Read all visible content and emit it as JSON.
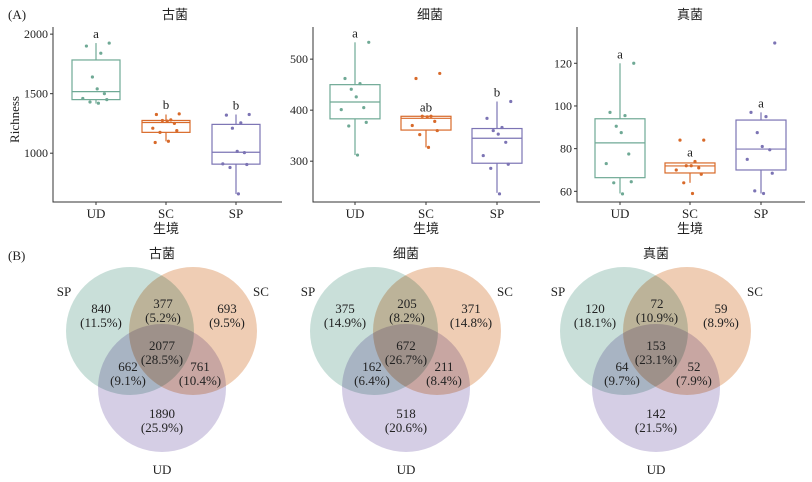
{
  "panel_labels": {
    "a": "(A)",
    "b": "(B)"
  },
  "colors": {
    "UD": "#6fa995",
    "SC": "#d86a2a",
    "SP": "#7c74b4",
    "venn_SP": "#c6ded7",
    "venn_SC": "#efcbb0",
    "venn_UD": "#d3cce4"
  },
  "chart_data": [
    {
      "type": "boxplot",
      "title": "古菌",
      "xlabel": "生境",
      "ylabel": "Richness",
      "categories": [
        "UD",
        "SC",
        "SP"
      ],
      "yticks": [
        1000,
        1500,
        2000
      ],
      "ylim": [
        590,
        2060
      ],
      "boxes": [
        {
          "group": "UD",
          "q1": 1450,
          "median": 1517,
          "q3": 1783,
          "whisker_low": 1417,
          "whisker_high": 1925,
          "letter": "a",
          "points": [
            1925,
            1900,
            1840,
            1640,
            1540,
            1500,
            1460,
            1450,
            1430,
            1420
          ]
        },
        {
          "group": "SC",
          "q1": 1175,
          "median": 1258,
          "q3": 1275,
          "whisker_low": 1100,
          "whisker_high": 1325,
          "letter": "b",
          "points": [
            1330,
            1325,
            1280,
            1275,
            1270,
            1250,
            1210,
            1190,
            1175,
            1100,
            1090
          ]
        },
        {
          "group": "SP",
          "q1": 908,
          "median": 1008,
          "q3": 1242,
          "whisker_low": 658,
          "whisker_high": 1325,
          "letter": "b",
          "points": [
            1325,
            1320,
            1255,
            1210,
            1015,
            1005,
            910,
            905,
            880,
            658
          ]
        }
      ]
    },
    {
      "type": "boxplot",
      "title": "细菌",
      "xlabel": "生境",
      "ylabel": "",
      "categories": [
        "UD",
        "SC",
        "SP"
      ],
      "yticks": [
        300,
        400,
        500
      ],
      "ylim": [
        220,
        563
      ],
      "boxes": [
        {
          "group": "UD",
          "q1": 383,
          "median": 416,
          "q3": 450,
          "whisker_low": 312,
          "whisker_high": 533,
          "letter": "a",
          "points": [
            533,
            462,
            452,
            441,
            426,
            405,
            401,
            376,
            369,
            312
          ]
        },
        {
          "group": "SC",
          "q1": 361,
          "median": 384,
          "q3": 388,
          "whisker_low": 327,
          "whisker_high": 388,
          "letter": "ab",
          "points": [
            472,
            462,
            388,
            388,
            387,
            378,
            370,
            360,
            352,
            327
          ]
        },
        {
          "group": "SP",
          "q1": 296,
          "median": 345,
          "q3": 364,
          "whisker_low": 238,
          "whisker_high": 417,
          "letter": "b",
          "points": [
            417,
            384,
            366,
            360,
            353,
            337,
            311,
            294,
            286,
            236
          ]
        }
      ]
    },
    {
      "type": "boxplot",
      "title": "真菌",
      "xlabel": "生境",
      "ylabel": "",
      "categories": [
        "UD",
        "SC",
        "SP"
      ],
      "yticks": [
        60,
        80,
        100,
        120
      ],
      "ylim": [
        55,
        137
      ],
      "boxes": [
        {
          "group": "UD",
          "q1": 66.4,
          "median": 82.7,
          "q3": 94,
          "whisker_low": 59,
          "whisker_high": 120,
          "letter": "a",
          "points": [
            120,
            97,
            95.5,
            90.5,
            87.5,
            77.5,
            73,
            64.5,
            64,
            58.8
          ]
        },
        {
          "group": "SC",
          "q1": 68.6,
          "median": 71.9,
          "q3": 73.3,
          "whisker_low": 64,
          "whisker_high": 73.5,
          "letter": "a",
          "points": [
            84,
            84,
            74,
            72,
            72,
            71,
            70,
            68,
            64,
            59
          ]
        },
        {
          "group": "SP",
          "q1": 70,
          "median": 79.8,
          "q3": 93.4,
          "whisker_low": 59,
          "whisker_high": 97,
          "letter": "a",
          "points": [
            129.5,
            97,
            95,
            87.5,
            81,
            79.5,
            75,
            68.5,
            60.2,
            59
          ]
        }
      ]
    },
    {
      "type": "venn",
      "title": "古菌",
      "sets": [
        "SP",
        "SC",
        "UD"
      ],
      "regions": {
        "SP_only": {
          "count": "840",
          "pct": "(11.5%)"
        },
        "SC_only": {
          "count": "693",
          "pct": "(9.5%)"
        },
        "UD_only": {
          "count": "1890",
          "pct": "(25.9%)"
        },
        "SP_SC": {
          "count": "377",
          "pct": "(5.2%)"
        },
        "SP_UD": {
          "count": "662",
          "pct": "(9.1%)"
        },
        "SC_UD": {
          "count": "761",
          "pct": "(10.4%)"
        },
        "all": {
          "count": "2077",
          "pct": "(28.5%)"
        }
      }
    },
    {
      "type": "venn",
      "title": "细菌",
      "sets": [
        "SP",
        "SC",
        "UD"
      ],
      "regions": {
        "SP_only": {
          "count": "375",
          "pct": "(14.9%)"
        },
        "SC_only": {
          "count": "371",
          "pct": "(14.8%)"
        },
        "UD_only": {
          "count": "518",
          "pct": "(20.6%)"
        },
        "SP_SC": {
          "count": "205",
          "pct": "(8.2%)"
        },
        "SP_UD": {
          "count": "162",
          "pct": "(6.4%)"
        },
        "SC_UD": {
          "count": "211",
          "pct": "(8.4%)"
        },
        "all": {
          "count": "672",
          "pct": "(26.7%)"
        }
      }
    },
    {
      "type": "venn",
      "title": "真菌",
      "sets": [
        "SP",
        "SC",
        "UD"
      ],
      "regions": {
        "SP_only": {
          "count": "120",
          "pct": "(18.1%)"
        },
        "SC_only": {
          "count": "59",
          "pct": "(8.9%)"
        },
        "UD_only": {
          "count": "142",
          "pct": "(21.5%)"
        },
        "SP_SC": {
          "count": "72",
          "pct": "(10.9%)"
        },
        "SP_UD": {
          "count": "64",
          "pct": "(9.7%)"
        },
        "SC_UD": {
          "count": "52",
          "pct": "(7.9%)"
        },
        "all": {
          "count": "153",
          "pct": "(23.1%)"
        }
      }
    }
  ]
}
